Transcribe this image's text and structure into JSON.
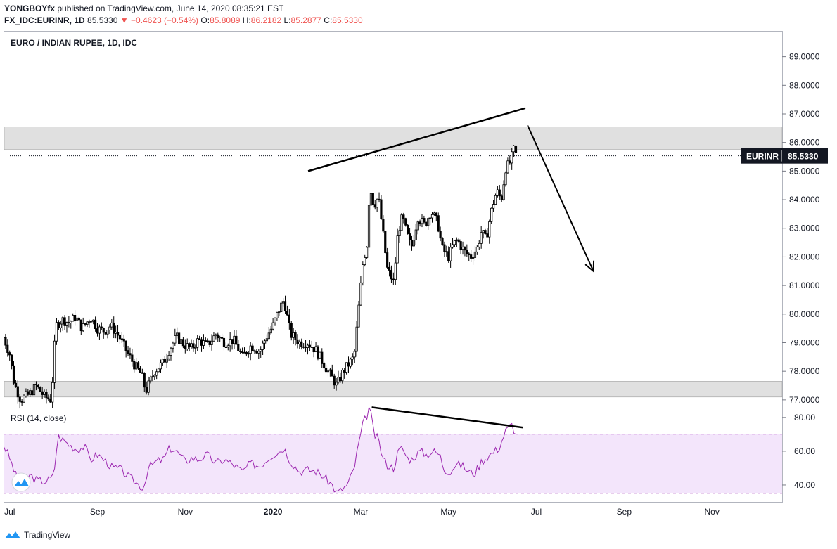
{
  "header": {
    "author": "YONGBOYfx",
    "published": "published on TradingView.com, June 14, 2020 08:35:21 EST",
    "symbol": "FX_IDC:EURINR, 1D",
    "last": "85.5330",
    "change": "▼ −0.4623 (−0.54%)",
    "o_label": "O:",
    "o_val": "85.8089",
    "h_label": "H:",
    "h_val": "86.2182",
    "l_label": "L:",
    "l_val": "85.2877",
    "c_label": "C:",
    "c_val": "85.5330"
  },
  "pane_title": "EURO / INDIAN RUPEE, 1D, IDC",
  "price_tag": {
    "symbol": "EURINR",
    "value": "85.5330"
  },
  "rsi_title": "RSI (14, close)",
  "footer": {
    "brand": "TradingView"
  },
  "colors": {
    "candle": "#000000",
    "rsi_line": "#9c27b0",
    "rsi_band": "#f3e5fb",
    "zone": "#e0e0e0",
    "tag_bg": "#131722"
  },
  "chart_data": [
    {
      "type": "candlestick",
      "title": "EURO / INDIAN RUPEE, 1D, IDC",
      "y_ticks": [
        "89.0000",
        "88.0000",
        "87.0000",
        "86.0000",
        "85.0000",
        "84.0000",
        "83.0000",
        "82.0000",
        "81.0000",
        "80.0000",
        "79.0000",
        "78.0000",
        "77.0000"
      ],
      "ylim": [
        76.8,
        89.9
      ],
      "x_ticks": [
        "Jul",
        "Sep",
        "Nov",
        "2020",
        "Mar",
        "May",
        "Jul",
        "Sep",
        "Nov"
      ],
      "x_tick_months": [
        1,
        3,
        5,
        7,
        9,
        11,
        13,
        15,
        17
      ],
      "xlim_months": [
        0.86,
        18.6
      ],
      "close_path": [
        [
          0.86,
          79.2
        ],
        [
          1.0,
          78.6
        ],
        [
          1.1,
          77.6
        ],
        [
          1.25,
          77.0
        ],
        [
          1.45,
          77.2
        ],
        [
          1.6,
          77.5
        ],
        [
          1.8,
          77.1
        ],
        [
          1.95,
          77.0
        ],
        [
          2.05,
          79.6
        ],
        [
          2.2,
          79.8
        ],
        [
          2.35,
          79.7
        ],
        [
          2.5,
          79.9
        ],
        [
          2.65,
          79.5
        ],
        [
          2.85,
          79.9
        ],
        [
          3.0,
          79.5
        ],
        [
          3.15,
          79.4
        ],
        [
          3.3,
          79.6
        ],
        [
          3.5,
          79.2
        ],
        [
          3.7,
          78.6
        ],
        [
          3.85,
          78.2
        ],
        [
          4.0,
          77.9
        ],
        [
          4.1,
          77.3
        ],
        [
          4.3,
          78.0
        ],
        [
          4.5,
          78.3
        ],
        [
          4.65,
          78.8
        ],
        [
          4.8,
          79.2
        ],
        [
          5.0,
          78.9
        ],
        [
          5.15,
          78.8
        ],
        [
          5.3,
          79.1
        ],
        [
          5.5,
          78.9
        ],
        [
          5.7,
          79.3
        ],
        [
          5.9,
          79.0
        ],
        [
          6.1,
          79.1
        ],
        [
          6.3,
          78.5
        ],
        [
          6.5,
          78.9
        ],
        [
          6.7,
          78.7
        ],
        [
          6.85,
          79.2
        ],
        [
          7.0,
          79.6
        ],
        [
          7.15,
          80.2
        ],
        [
          7.25,
          80.5
        ],
        [
          7.4,
          79.3
        ],
        [
          7.6,
          79.0
        ],
        [
          7.8,
          79.0
        ],
        [
          8.0,
          78.7
        ],
        [
          8.1,
          78.4
        ],
        [
          8.3,
          77.9
        ],
        [
          8.45,
          77.5
        ],
        [
          8.6,
          78.0
        ],
        [
          8.75,
          78.3
        ],
        [
          8.85,
          78.5
        ],
        [
          8.95,
          80.2
        ],
        [
          9.05,
          81.8
        ],
        [
          9.15,
          82.5
        ],
        [
          9.2,
          84.5
        ],
        [
          9.3,
          83.8
        ],
        [
          9.4,
          84.1
        ],
        [
          9.5,
          82.9
        ],
        [
          9.6,
          81.6
        ],
        [
          9.75,
          81.1
        ],
        [
          9.85,
          82.9
        ],
        [
          9.95,
          83.4
        ],
        [
          10.05,
          82.8
        ],
        [
          10.15,
          82.3
        ],
        [
          10.3,
          83.4
        ],
        [
          10.45,
          83.1
        ],
        [
          10.6,
          83.6
        ],
        [
          10.75,
          83.2
        ],
        [
          10.85,
          82.3
        ],
        [
          11.0,
          82.0
        ],
        [
          11.1,
          82.4
        ],
        [
          11.2,
          82.6
        ],
        [
          11.35,
          82.2
        ],
        [
          11.5,
          82.0
        ],
        [
          11.65,
          82.3
        ],
        [
          11.75,
          82.9
        ],
        [
          11.85,
          82.6
        ],
        [
          12.0,
          83.8
        ],
        [
          12.1,
          84.3
        ],
        [
          12.2,
          84.0
        ],
        [
          12.3,
          85.1
        ],
        [
          12.4,
          85.3
        ],
        [
          12.5,
          85.8
        ],
        [
          12.55,
          85.5
        ]
      ],
      "rsi_ticks": [
        "80.00",
        "60.00",
        "40.00"
      ],
      "rsi_ylim": [
        30,
        87
      ],
      "rsi_band": [
        35,
        70
      ],
      "rsi_path": [
        [
          0.86,
          64
        ],
        [
          1.0,
          56
        ],
        [
          1.15,
          45
        ],
        [
          1.3,
          40
        ],
        [
          1.45,
          46
        ],
        [
          1.6,
          43
        ],
        [
          1.8,
          42
        ],
        [
          2.0,
          45
        ],
        [
          2.1,
          69
        ],
        [
          2.25,
          66
        ],
        [
          2.4,
          63
        ],
        [
          2.55,
          61
        ],
        [
          2.7,
          63
        ],
        [
          2.85,
          55
        ],
        [
          3.0,
          58
        ],
        [
          3.15,
          55
        ],
        [
          3.35,
          50
        ],
        [
          3.5,
          50
        ],
        [
          3.7,
          45
        ],
        [
          3.85,
          42
        ],
        [
          4.05,
          38
        ],
        [
          4.15,
          50
        ],
        [
          4.35,
          54
        ],
        [
          4.5,
          55
        ],
        [
          4.65,
          62
        ],
        [
          4.8,
          60
        ],
        [
          5.0,
          54
        ],
        [
          5.15,
          56
        ],
        [
          5.3,
          55
        ],
        [
          5.5,
          58
        ],
        [
          5.7,
          53
        ],
        [
          5.9,
          55
        ],
        [
          6.1,
          52
        ],
        [
          6.3,
          48
        ],
        [
          6.5,
          53
        ],
        [
          6.7,
          51
        ],
        [
          6.85,
          55
        ],
        [
          7.0,
          58
        ],
        [
          7.15,
          60
        ],
        [
          7.25,
          62
        ],
        [
          7.4,
          54
        ],
        [
          7.6,
          48
        ],
        [
          7.8,
          49
        ],
        [
          8.0,
          48
        ],
        [
          8.15,
          45
        ],
        [
          8.35,
          40
        ],
        [
          8.45,
          35
        ],
        [
          8.55,
          37
        ],
        [
          8.7,
          40
        ],
        [
          8.85,
          50
        ],
        [
          8.95,
          64
        ],
        [
          9.05,
          76
        ],
        [
          9.15,
          82
        ],
        [
          9.2,
          87
        ],
        [
          9.3,
          70
        ],
        [
          9.4,
          67
        ],
        [
          9.5,
          56
        ],
        [
          9.6,
          52
        ],
        [
          9.75,
          50
        ],
        [
          9.85,
          60
        ],
        [
          9.95,
          62
        ],
        [
          10.05,
          56
        ],
        [
          10.15,
          55
        ],
        [
          10.35,
          60
        ],
        [
          10.5,
          58
        ],
        [
          10.65,
          60
        ],
        [
          10.8,
          58
        ],
        [
          10.9,
          49
        ],
        [
          11.05,
          48
        ],
        [
          11.15,
          52
        ],
        [
          11.3,
          52
        ],
        [
          11.45,
          48
        ],
        [
          11.6,
          47
        ],
        [
          11.75,
          54
        ],
        [
          11.9,
          57
        ],
        [
          12.05,
          60
        ],
        [
          12.15,
          62
        ],
        [
          12.3,
          72
        ],
        [
          12.45,
          76
        ],
        [
          12.55,
          68
        ]
      ]
    }
  ],
  "annotations": {
    "upper_trendline": [
      [
        7.8,
        85.0
      ],
      [
        12.75,
        87.2
      ]
    ],
    "rsi_trendline": [
      [
        9.25,
        86
      ],
      [
        12.7,
        74
      ]
    ],
    "arrow": [
      [
        12.8,
        86.6
      ],
      [
        14.3,
        81.5
      ]
    ],
    "zones": [
      [
        85.75,
        86.55
      ],
      [
        77.1,
        77.65
      ]
    ],
    "last_price": 85.533
  }
}
